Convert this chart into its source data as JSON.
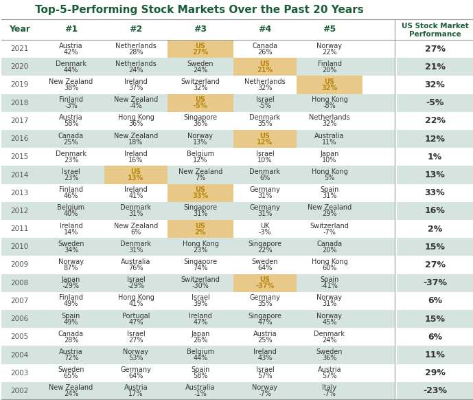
{
  "title": "Top-5-Performing Stock Markets Over the Past 20 Years",
  "title_color": "#1a5c38",
  "header_color": "#1a5c38",
  "sidebar_title_line1": "US Stock Market",
  "sidebar_title_line2": "Performance",
  "sidebar_title_color": "#1a5c38",
  "years": [
    2021,
    2020,
    2019,
    2018,
    2017,
    2016,
    2015,
    2014,
    2013,
    2012,
    2011,
    2010,
    2009,
    2008,
    2007,
    2006,
    2005,
    2004,
    2003,
    2002
  ],
  "columns": [
    "#1",
    "#2",
    "#3",
    "#4",
    "#5"
  ],
  "data": [
    [
      "Austria\n42%",
      "Netherlands\n28%",
      "US\n27%",
      "Canada\n26%",
      "Norway\n22%"
    ],
    [
      "Denmark\n44%",
      "Netherlands\n24%",
      "Sweden\n24%",
      "US\n21%",
      "Finland\n20%"
    ],
    [
      "New Zealand\n38%",
      "Ireland\n37%",
      "Switzerland\n32%",
      "Netherlands\n32%",
      "US\n32%"
    ],
    [
      "Finland\n-3%",
      "New Zealand\n-4%",
      "US\n-5%",
      "Israel\n-5%",
      "Hong Kong\n-8%"
    ],
    [
      "Austria\n58%",
      "Hong Kong\n36%",
      "Singapore\n36%",
      "Denmark\n35%",
      "Netherlands\n32%"
    ],
    [
      "Canada\n25%",
      "New Zealand\n18%",
      "Norway\n13%",
      "US\n12%",
      "Australia\n11%"
    ],
    [
      "Denmark\n23%",
      "Ireland\n16%",
      "Belgium\n12%",
      "Israel\n10%",
      "Japan\n10%"
    ],
    [
      "Israel\n23%",
      "US\n13%",
      "New Zealand\n7%",
      "Denmark\n6%",
      "Hong Kong\n5%"
    ],
    [
      "Finland\n46%",
      "Ireland\n41%",
      "US\n33%",
      "Germany\n31%",
      "Spain\n31%"
    ],
    [
      "Belgium\n40%",
      "Denmark\n31%",
      "Singapore\n31%",
      "Germany\n31%",
      "New Zealand\n29%"
    ],
    [
      "Ireland\n14%",
      "New Zealand\n6%",
      "US\n2%",
      "UK\n-3%",
      "Switzerland\n-7%"
    ],
    [
      "Sweden\n34%",
      "Denmark\n31%",
      "Hong Kong\n23%",
      "Singapore\n22%",
      "Canada\n20%"
    ],
    [
      "Norway\n87%",
      "Australia\n76%",
      "Singapore\n74%",
      "Sweden\n64%",
      "Hong Kong\n60%"
    ],
    [
      "Japan\n-29%",
      "Israel\n-29%",
      "Switzerland\n-30%",
      "US\n-37%",
      "Spain\n-41%"
    ],
    [
      "Finland\n49%",
      "Hong Kong\n41%",
      "Israel\n39%",
      "Germany\n35%",
      "Norway\n31%"
    ],
    [
      "Spain\n49%",
      "Portugal\n47%",
      "Ireland\n47%",
      "Singapore\n47%",
      "Norway\n45%"
    ],
    [
      "Canada\n28%",
      "Israel\n27%",
      "Japan\n26%",
      "Austria\n25%",
      "Denmark\n24%"
    ],
    [
      "Austria\n72%",
      "Norway\n53%",
      "Belgium\n44%",
      "Ireland\n43%",
      "Sweden\n36%"
    ],
    [
      "Sweden\n65%",
      "Germany\n64%",
      "Spain\n58%",
      "Israel\n57%",
      "Austria\n57%"
    ],
    [
      "New Zealand\n24%",
      "Austria\n17%",
      "Australia\n-1%",
      "Norway\n-7%",
      "Italy\n-7%"
    ]
  ],
  "us_highlight_col": [
    2,
    3,
    4,
    2,
    null,
    3,
    null,
    1,
    2,
    null,
    2,
    null,
    null,
    3,
    null,
    null,
    null,
    null,
    null,
    null
  ],
  "us_performance": [
    "27%",
    "21%",
    "32%",
    "-5%",
    "22%",
    "12%",
    "1%",
    "13%",
    "33%",
    "16%",
    "2%",
    "15%",
    "27%",
    "-37%",
    "6%",
    "15%",
    "6%",
    "11%",
    "29%",
    "-23%"
  ],
  "bg_color": "#ffffff",
  "row_bg_even": "#d6e4e0",
  "row_bg_odd": "#ffffff",
  "us_highlight_color": "#e8c98a",
  "sidebar_bg_even": "#d6e4e0",
  "sidebar_bg_odd": "#ffffff",
  "table_font_size": 7.0,
  "header_font_size": 9.0,
  "title_font_size": 11.0,
  "year_font_size": 7.5,
  "sidebar_font_size": 9.0,
  "us_text_color": "#b8860b",
  "normal_text_color": "#333333",
  "year_text_color": "#555555",
  "line_color": "#999999"
}
